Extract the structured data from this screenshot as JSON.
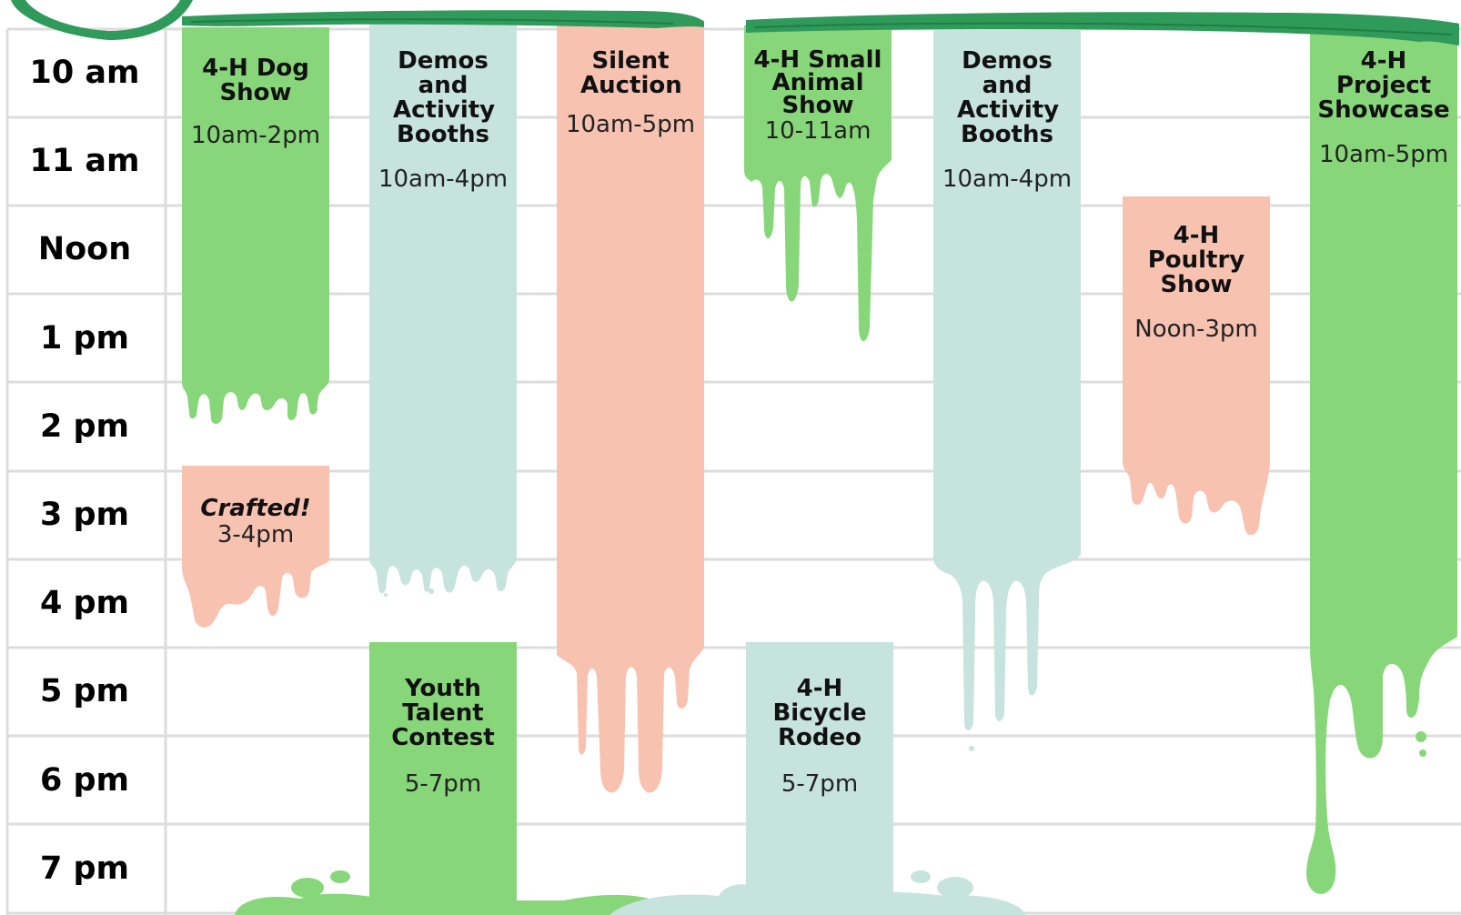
{
  "colors": {
    "green": "#88d67a",
    "teal": "#c7e3de",
    "salmon": "#f8c2b1",
    "dark_green": "#2f9a5a",
    "grid": "#dcdcdc"
  },
  "time_labels": [
    "10 am",
    "11 am",
    "Noon",
    "1 pm",
    "2 pm",
    "3 pm",
    "4 pm",
    "5 pm",
    "6 pm",
    "7 pm"
  ],
  "events": [
    {
      "title": "4-H Dog Show",
      "time": "10am-2pm",
      "color": "green"
    },
    {
      "title": "Demos and Activity Booths",
      "time": "10am-4pm",
      "color": "teal"
    },
    {
      "title": "Silent Auction",
      "time": "10am-5pm",
      "color": "salmon"
    },
    {
      "title": "4-H Small Animal Show",
      "time": "10-11am",
      "color": "green"
    },
    {
      "title": "Demos and Activity Booths",
      "time": "10am-4pm",
      "color": "teal"
    },
    {
      "title": "4-H Project Showcase",
      "time": "10am-5pm",
      "color": "green"
    },
    {
      "title": "4-H Poultry Show",
      "time": "Noon-3pm",
      "color": "salmon"
    },
    {
      "title": "Crafted!",
      "time": "3-4pm",
      "color": "salmon"
    },
    {
      "title": "Youth Talent Contest",
      "time": "5-7pm",
      "color": "green"
    },
    {
      "title": "4-H Bicycle Rodeo",
      "time": "5-7pm",
      "color": "teal"
    }
  ]
}
